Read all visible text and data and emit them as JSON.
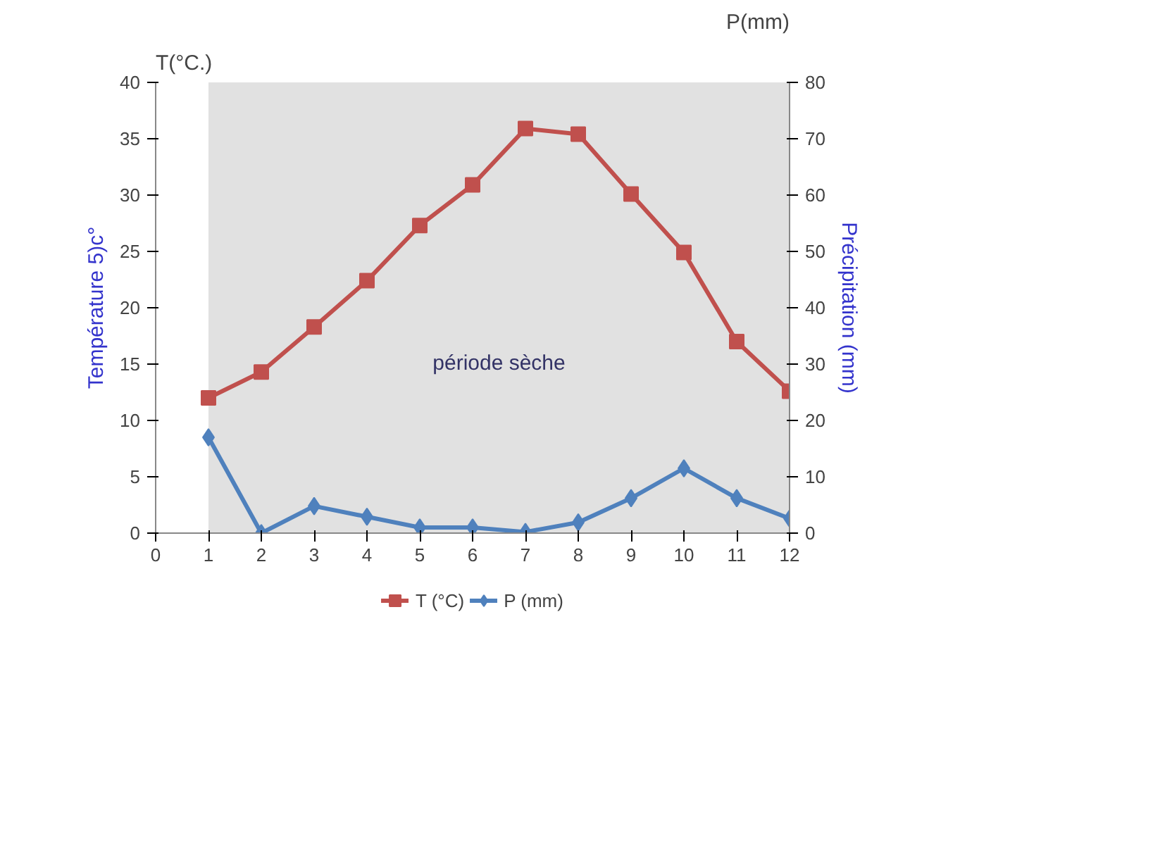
{
  "chart_data": {
    "type": "line",
    "ylabel": "Température 5)c°",
    "y2label": "Précipitation (mm)",
    "annotations": [
      "T(°C.)",
      "P(mm)"
    ],
    "bands": [
      {
        "axis": "x",
        "from": 1,
        "to": 12,
        "label": "période sèche",
        "color": "#d9d9d9"
      }
    ],
    "x": [
      1,
      2,
      3,
      4,
      5,
      6,
      7,
      8,
      9,
      10,
      11,
      12
    ],
    "xlim": [
      0,
      12
    ],
    "xticks": [
      0,
      1,
      2,
      3,
      4,
      5,
      6,
      7,
      8,
      9,
      10,
      11,
      12
    ],
    "ylim": [
      0,
      40
    ],
    "yticks": [
      0,
      5,
      10,
      15,
      20,
      25,
      30,
      35,
      40
    ],
    "y2lim": [
      0,
      80
    ],
    "y2ticks": [
      0,
      10,
      20,
      30,
      40,
      50,
      60,
      70,
      80
    ],
    "series": [
      {
        "name": "T (°C)",
        "color": "#c0504d",
        "marker": "square",
        "values": [
          12.0,
          14.3,
          18.3,
          22.4,
          27.3,
          30.9,
          35.9,
          35.4,
          30.1,
          24.9,
          17.0,
          12.6
        ]
      },
      {
        "name": "P (mm)",
        "color": "#4f81bd",
        "marker": "diamond",
        "axis": "y2",
        "values": [
          17.0,
          0.0,
          4.8,
          2.9,
          1.0,
          1.0,
          0.2,
          1.9,
          6.2,
          11.5,
          6.2,
          2.6
        ]
      }
    ],
    "legend": "bottom",
    "grid": false
  }
}
